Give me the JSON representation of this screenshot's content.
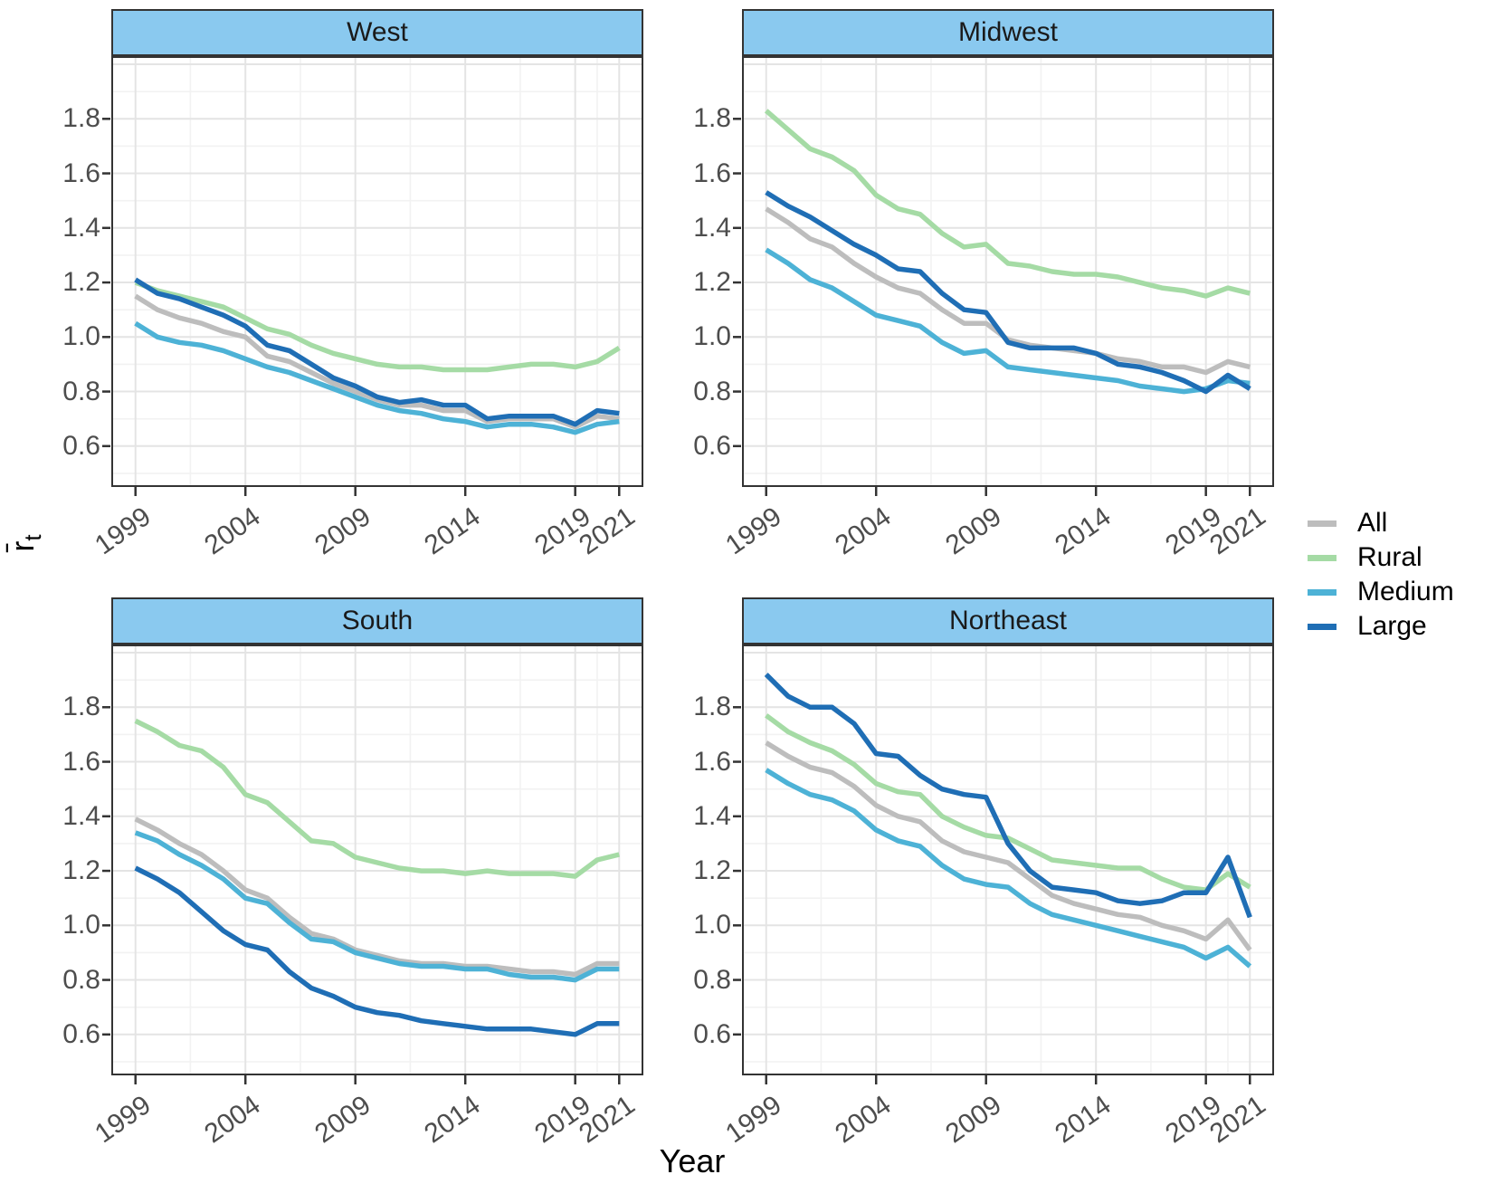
{
  "chart_data": {
    "type": "line",
    "title": "",
    "xlabel": "Year",
    "ylabel_base": "r̄",
    "ylabel_sub": "t",
    "legend_position": "right",
    "grid": true,
    "xlim": [
      1997.9,
      2022.1
    ],
    "ylim": [
      0.45,
      2.03
    ],
    "years": [
      1999,
      2000,
      2001,
      2002,
      2003,
      2004,
      2005,
      2006,
      2007,
      2008,
      2009,
      2010,
      2011,
      2012,
      2013,
      2014,
      2015,
      2016,
      2017,
      2018,
      2019,
      2020,
      2021
    ],
    "x_tick_labels": [
      {
        "value": 1999,
        "label": "1999"
      },
      {
        "value": 2004,
        "label": "2004"
      },
      {
        "value": 2009,
        "label": "2009"
      },
      {
        "value": 2014,
        "label": "2014"
      },
      {
        "value": 2019,
        "label": "2019"
      },
      {
        "value": 2021,
        "label": "2021"
      }
    ],
    "x_minor_gridlines": [
      2001.5,
      2006.5,
      2011.5,
      2016.5,
      2020
    ],
    "y_tick_labels": [
      {
        "value": 0.6,
        "label": "0.6"
      },
      {
        "value": 0.8,
        "label": "0.8"
      },
      {
        "value": 1.0,
        "label": "1.0"
      },
      {
        "value": 1.2,
        "label": "1.2"
      },
      {
        "value": 1.4,
        "label": "1.4"
      },
      {
        "value": 1.6,
        "label": "1.6"
      },
      {
        "value": 1.8,
        "label": "1.8"
      }
    ],
    "y_major_gridlines": [
      0.6,
      0.8,
      1.0,
      1.2,
      1.4,
      1.6,
      1.8,
      2.0
    ],
    "y_minor_gridlines": [
      0.5,
      0.7,
      0.9,
      1.1,
      1.3,
      1.5,
      1.7,
      1.9
    ],
    "colors": {
      "strip_fill": "#8AC9EF",
      "strip_border": "#333333",
      "panel_border": "#333333",
      "grid_major": "#E4E4E4",
      "grid_minor": "#F2F2F2",
      "axis_text": "#4D4D4D",
      "tick_mark": "#333333"
    },
    "legend": [
      {
        "label": "All",
        "color": "#BDBDBD"
      },
      {
        "label": "Rural",
        "color": "#A5DBA5"
      },
      {
        "label": "Medium",
        "color": "#4DB2D6"
      },
      {
        "label": "Large",
        "color": "#1F6EB5"
      }
    ],
    "facets": [
      {
        "title": "West",
        "series": [
          {
            "name": "All",
            "values": [
              1.15,
              1.1,
              1.07,
              1.05,
              1.02,
              1.0,
              0.93,
              0.91,
              0.87,
              0.83,
              0.8,
              0.77,
              0.75,
              0.75,
              0.73,
              0.73,
              0.69,
              0.7,
              0.7,
              0.7,
              0.67,
              0.71,
              0.7
            ]
          },
          {
            "name": "Rural",
            "values": [
              1.2,
              1.17,
              1.15,
              1.13,
              1.11,
              1.07,
              1.03,
              1.01,
              0.97,
              0.94,
              0.92,
              0.9,
              0.89,
              0.89,
              0.88,
              0.88,
              0.88,
              0.89,
              0.9,
              0.9,
              0.89,
              0.91,
              0.96
            ]
          },
          {
            "name": "Medium",
            "values": [
              1.05,
              1.0,
              0.98,
              0.97,
              0.95,
              0.92,
              0.89,
              0.87,
              0.84,
              0.81,
              0.78,
              0.75,
              0.73,
              0.72,
              0.7,
              0.69,
              0.67,
              0.68,
              0.68,
              0.67,
              0.65,
              0.68,
              0.69
            ]
          },
          {
            "name": "Large",
            "values": [
              1.21,
              1.16,
              1.14,
              1.11,
              1.08,
              1.04,
              0.97,
              0.95,
              0.9,
              0.85,
              0.82,
              0.78,
              0.76,
              0.77,
              0.75,
              0.75,
              0.7,
              0.71,
              0.71,
              0.71,
              0.68,
              0.73,
              0.72
            ]
          }
        ]
      },
      {
        "title": "Midwest",
        "series": [
          {
            "name": "All",
            "values": [
              1.47,
              1.42,
              1.36,
              1.33,
              1.27,
              1.22,
              1.18,
              1.16,
              1.1,
              1.05,
              1.05,
              0.99,
              0.97,
              0.96,
              0.95,
              0.94,
              0.92,
              0.91,
              0.89,
              0.89,
              0.87,
              0.91,
              0.89
            ]
          },
          {
            "name": "Rural",
            "values": [
              1.83,
              1.76,
              1.69,
              1.66,
              1.61,
              1.52,
              1.47,
              1.45,
              1.38,
              1.33,
              1.34,
              1.27,
              1.26,
              1.24,
              1.23,
              1.23,
              1.22,
              1.2,
              1.18,
              1.17,
              1.15,
              1.18,
              1.16
            ]
          },
          {
            "name": "Medium",
            "values": [
              1.32,
              1.27,
              1.21,
              1.18,
              1.13,
              1.08,
              1.06,
              1.04,
              0.98,
              0.94,
              0.95,
              0.89,
              0.88,
              0.87,
              0.86,
              0.85,
              0.84,
              0.82,
              0.81,
              0.8,
              0.81,
              0.84,
              0.83
            ]
          },
          {
            "name": "Large",
            "values": [
              1.53,
              1.48,
              1.44,
              1.39,
              1.34,
              1.3,
              1.25,
              1.24,
              1.16,
              1.1,
              1.09,
              0.98,
              0.96,
              0.96,
              0.96,
              0.94,
              0.9,
              0.89,
              0.87,
              0.84,
              0.8,
              0.86,
              0.81
            ]
          }
        ]
      },
      {
        "title": "South",
        "series": [
          {
            "name": "All",
            "values": [
              1.39,
              1.35,
              1.3,
              1.26,
              1.2,
              1.13,
              1.1,
              1.03,
              0.97,
              0.95,
              0.91,
              0.89,
              0.87,
              0.86,
              0.86,
              0.85,
              0.85,
              0.84,
              0.83,
              0.83,
              0.82,
              0.86,
              0.86
            ]
          },
          {
            "name": "Rural",
            "values": [
              1.75,
              1.71,
              1.66,
              1.64,
              1.58,
              1.48,
              1.45,
              1.38,
              1.31,
              1.3,
              1.25,
              1.23,
              1.21,
              1.2,
              1.2,
              1.19,
              1.2,
              1.19,
              1.19,
              1.19,
              1.18,
              1.24,
              1.26
            ]
          },
          {
            "name": "Medium",
            "values": [
              1.34,
              1.31,
              1.26,
              1.22,
              1.17,
              1.1,
              1.08,
              1.01,
              0.95,
              0.94,
              0.9,
              0.88,
              0.86,
              0.85,
              0.85,
              0.84,
              0.84,
              0.82,
              0.81,
              0.81,
              0.8,
              0.84,
              0.84
            ]
          },
          {
            "name": "Large",
            "values": [
              1.21,
              1.17,
              1.12,
              1.05,
              0.98,
              0.93,
              0.91,
              0.83,
              0.77,
              0.74,
              0.7,
              0.68,
              0.67,
              0.65,
              0.64,
              0.63,
              0.62,
              0.62,
              0.62,
              0.61,
              0.6,
              0.64,
              0.64
            ]
          }
        ]
      },
      {
        "title": "Northeast",
        "series": [
          {
            "name": "All",
            "values": [
              1.67,
              1.62,
              1.58,
              1.56,
              1.51,
              1.44,
              1.4,
              1.38,
              1.31,
              1.27,
              1.25,
              1.23,
              1.17,
              1.11,
              1.08,
              1.06,
              1.04,
              1.03,
              1.0,
              0.98,
              0.95,
              1.02,
              0.91
            ]
          },
          {
            "name": "Rural",
            "values": [
              1.77,
              1.71,
              1.67,
              1.64,
              1.59,
              1.52,
              1.49,
              1.48,
              1.4,
              1.36,
              1.33,
              1.32,
              1.28,
              1.24,
              1.23,
              1.22,
              1.21,
              1.21,
              1.17,
              1.14,
              1.13,
              1.19,
              1.14
            ]
          },
          {
            "name": "Medium",
            "values": [
              1.57,
              1.52,
              1.48,
              1.46,
              1.42,
              1.35,
              1.31,
              1.29,
              1.22,
              1.17,
              1.15,
              1.14,
              1.08,
              1.04,
              1.02,
              1.0,
              0.98,
              0.96,
              0.94,
              0.92,
              0.88,
              0.92,
              0.85
            ]
          },
          {
            "name": "Large",
            "values": [
              1.92,
              1.84,
              1.8,
              1.8,
              1.74,
              1.63,
              1.62,
              1.55,
              1.5,
              1.48,
              1.47,
              1.3,
              1.2,
              1.14,
              1.13,
              1.12,
              1.09,
              1.08,
              1.09,
              1.12,
              1.12,
              1.25,
              1.03
            ]
          }
        ]
      }
    ]
  }
}
